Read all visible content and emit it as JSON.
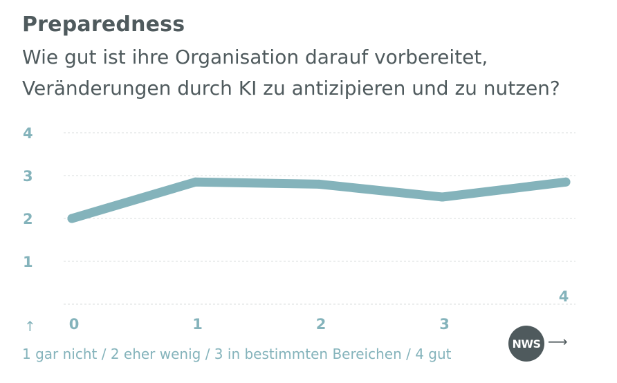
{
  "header": {
    "title": "Preparedness",
    "subtitle_line1": "Wie gut ist ihre Organisation darauf vorbereitet,",
    "subtitle_line2": "Veränderungen durch KI zu antizipieren und zu nutzen?"
  },
  "footer": {
    "up_arrow": "↑",
    "legend_text": "1 gar nicht / 2 eher wenig / 3 in bestimmten Bereichen / 4 gut",
    "logo_text": "NWS",
    "right_arrow": "⟶"
  },
  "colors": {
    "line": "#84b3bb",
    "text_dark": "#4f5a5d",
    "accent": "#84b3bb",
    "grid": "#d8dcdd"
  },
  "chart_data": {
    "type": "line",
    "title": "Preparedness",
    "x": [
      0,
      1,
      2,
      3,
      4
    ],
    "x_tick_labels": [
      "0",
      "1",
      "2",
      "3",
      "4"
    ],
    "y_tick_labels": [
      "1",
      "2",
      "3",
      "4"
    ],
    "series": [
      {
        "name": "Preparedness",
        "values": [
          2.0,
          2.85,
          2.8,
          2.5,
          2.85
        ]
      }
    ],
    "xlim": [
      0,
      4
    ],
    "ylim": [
      0,
      4
    ],
    "grid": true,
    "xlabel": "",
    "ylabel": ""
  }
}
